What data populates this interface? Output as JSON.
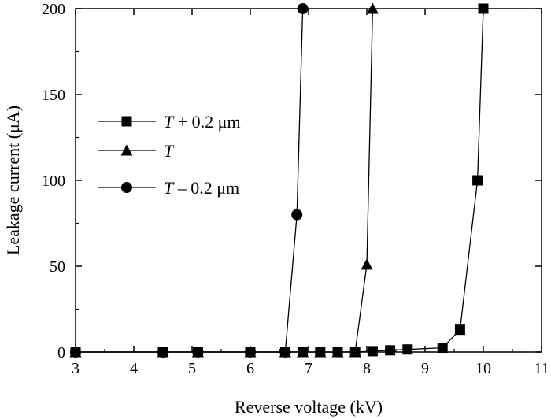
{
  "chart_data": {
    "type": "scatter",
    "title": "",
    "xlabel": "Reverse voltage (kV)",
    "ylabel": "Leakage current (μA)",
    "xlim": [
      3,
      11
    ],
    "ylim": [
      0,
      200
    ],
    "xticks": [
      3,
      4,
      5,
      6,
      7,
      8,
      9,
      10,
      11
    ],
    "yticks": [
      0,
      50,
      100,
      150,
      200
    ],
    "grid": false,
    "legend_position": "middle-left",
    "series": [
      {
        "name": "T + 0.2 μm",
        "name_italic": "T",
        "name_rest": " + 0.2 μm",
        "marker": "square",
        "color": "#000000",
        "points": [
          [
            3.0,
            0
          ],
          [
            4.5,
            0
          ],
          [
            5.1,
            0
          ],
          [
            6.0,
            0
          ],
          [
            6.6,
            0
          ],
          [
            6.9,
            0
          ],
          [
            7.2,
            0
          ],
          [
            7.5,
            0
          ],
          [
            7.8,
            0
          ],
          [
            8.1,
            0.5
          ],
          [
            8.4,
            1
          ],
          [
            8.7,
            1.5
          ],
          [
            9.3,
            2.5
          ],
          [
            9.6,
            13
          ],
          [
            9.9,
            100
          ],
          [
            10.0,
            200
          ]
        ]
      },
      {
        "name": "T",
        "name_italic": "T",
        "name_rest": "",
        "marker": "triangle",
        "color": "#000000",
        "points": [
          [
            3.0,
            0
          ],
          [
            4.5,
            0
          ],
          [
            5.1,
            0
          ],
          [
            6.0,
            0
          ],
          [
            6.6,
            0
          ],
          [
            6.9,
            0
          ],
          [
            7.2,
            0
          ],
          [
            7.5,
            0
          ],
          [
            7.8,
            0
          ],
          [
            8.0,
            51
          ],
          [
            8.1,
            200
          ]
        ]
      },
      {
        "name": "T – 0.2 μm",
        "name_italic": "T",
        "name_rest": " – 0.2 μm",
        "marker": "circle",
        "color": "#000000",
        "points": [
          [
            3.0,
            0
          ],
          [
            4.5,
            0
          ],
          [
            5.1,
            0
          ],
          [
            6.0,
            0
          ],
          [
            6.6,
            0
          ],
          [
            6.8,
            80
          ],
          [
            6.9,
            200
          ]
        ]
      }
    ]
  }
}
